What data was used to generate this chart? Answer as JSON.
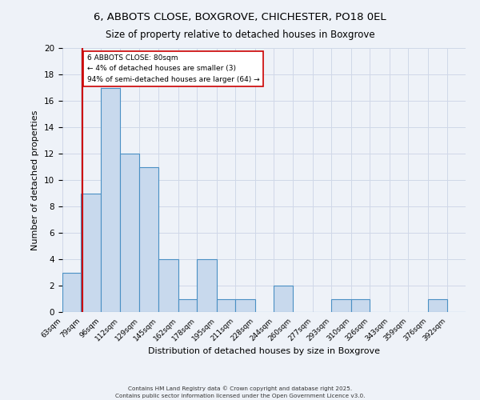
{
  "title_line1": "6, ABBOTS CLOSE, BOXGROVE, CHICHESTER, PO18 0EL",
  "title_line2": "Size of property relative to detached houses in Boxgrove",
  "xlabel": "Distribution of detached houses by size in Boxgrove",
  "ylabel": "Number of detached properties",
  "bin_labels": [
    "63sqm",
    "79sqm",
    "96sqm",
    "112sqm",
    "129sqm",
    "145sqm",
    "162sqm",
    "178sqm",
    "195sqm",
    "211sqm",
    "228sqm",
    "244sqm",
    "260sqm",
    "277sqm",
    "293sqm",
    "310sqm",
    "326sqm",
    "343sqm",
    "359sqm",
    "376sqm",
    "392sqm"
  ],
  "bin_edges": [
    63,
    79,
    96,
    112,
    129,
    145,
    162,
    178,
    195,
    211,
    228,
    244,
    260,
    277,
    293,
    310,
    326,
    343,
    359,
    376,
    392,
    408
  ],
  "counts": [
    3,
    9,
    17,
    12,
    11,
    4,
    1,
    4,
    1,
    1,
    0,
    2,
    0,
    0,
    1,
    1,
    0,
    0,
    0,
    1,
    0
  ],
  "bar_fill_color": "#c8d9ed",
  "bar_edge_color": "#4a90c4",
  "reference_line_x": 80,
  "reference_line_color": "#cc0000",
  "annotation_text": "6 ABBOTS CLOSE: 80sqm\n← 4% of detached houses are smaller (3)\n94% of semi-detached houses are larger (64) →",
  "annotation_box_color": "#ffffff",
  "annotation_box_edge_color": "#cc0000",
  "ylim": [
    0,
    20
  ],
  "yticks": [
    0,
    2,
    4,
    6,
    8,
    10,
    12,
    14,
    16,
    18,
    20
  ],
  "grid_color": "#d0d8e8",
  "background_color": "#eef2f8",
  "footer_line1": "Contains HM Land Registry data © Crown copyright and database right 2025.",
  "footer_line2": "Contains public sector information licensed under the Open Government Licence v3.0."
}
